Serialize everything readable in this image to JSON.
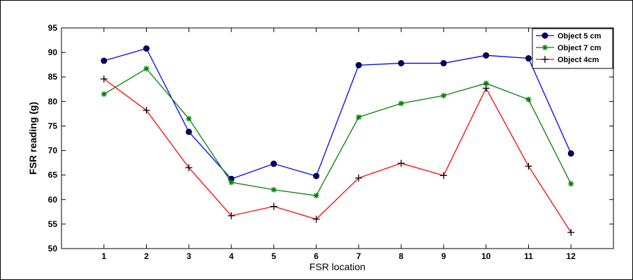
{
  "chart_data": {
    "type": "line",
    "xlabel": "FSR location",
    "ylabel": "FSR reading (g)",
    "x": [
      1,
      2,
      3,
      4,
      5,
      6,
      7,
      8,
      9,
      10,
      11,
      12
    ],
    "xlim": [
      0,
      13
    ],
    "ylim": [
      50,
      95
    ],
    "yticks": [
      50,
      55,
      60,
      65,
      70,
      75,
      80,
      85,
      90,
      95
    ],
    "grid": false,
    "legend_position": "top-right",
    "series": [
      {
        "name": "Object 5 cm",
        "color": "#0000ff",
        "marker": "filled-circle",
        "values": [
          88.3,
          90.8,
          73.8,
          64.2,
          67.3,
          64.8,
          87.4,
          87.8,
          87.8,
          89.4,
          88.8,
          69.4
        ]
      },
      {
        "name": "Object 7 cm",
        "color": "#008000",
        "marker": "asterisk",
        "values": [
          81.5,
          86.7,
          76.5,
          63.5,
          62.0,
          60.8,
          76.8,
          79.6,
          81.2,
          83.7,
          80.4,
          63.2
        ]
      },
      {
        "name": "Object 4cm",
        "color": "#ff0000",
        "marker": "plus",
        "values": [
          84.6,
          78.2,
          66.5,
          56.7,
          58.6,
          56.0,
          64.4,
          67.4,
          64.9,
          82.7,
          66.8,
          53.3
        ]
      }
    ]
  }
}
